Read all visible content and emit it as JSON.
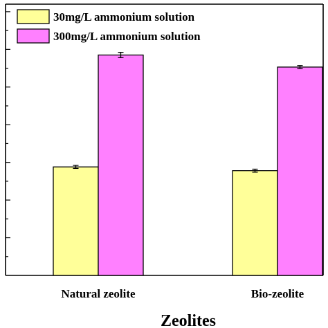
{
  "chart_data": {
    "type": "bar",
    "categories": [
      "Natural zeolite",
      "Bio-zeolite"
    ],
    "series": [
      {
        "name": "30mg/L ammonium solution",
        "color": "#FFFF99",
        "values": [
          2.88,
          2.78
        ],
        "errors": [
          0.04,
          0.04
        ]
      },
      {
        "name": "300mg/L ammonium solution",
        "color": "#FF80FF",
        "values": [
          5.85,
          5.53
        ],
        "errors": [
          0.07,
          0.04
        ]
      }
    ],
    "xlabel": "Zeolites",
    "ylabel": "",
    "ylim": [
      0,
      7.2
    ],
    "legend": "top-left",
    "grid": false,
    "bar_edge_color": "#000000"
  }
}
